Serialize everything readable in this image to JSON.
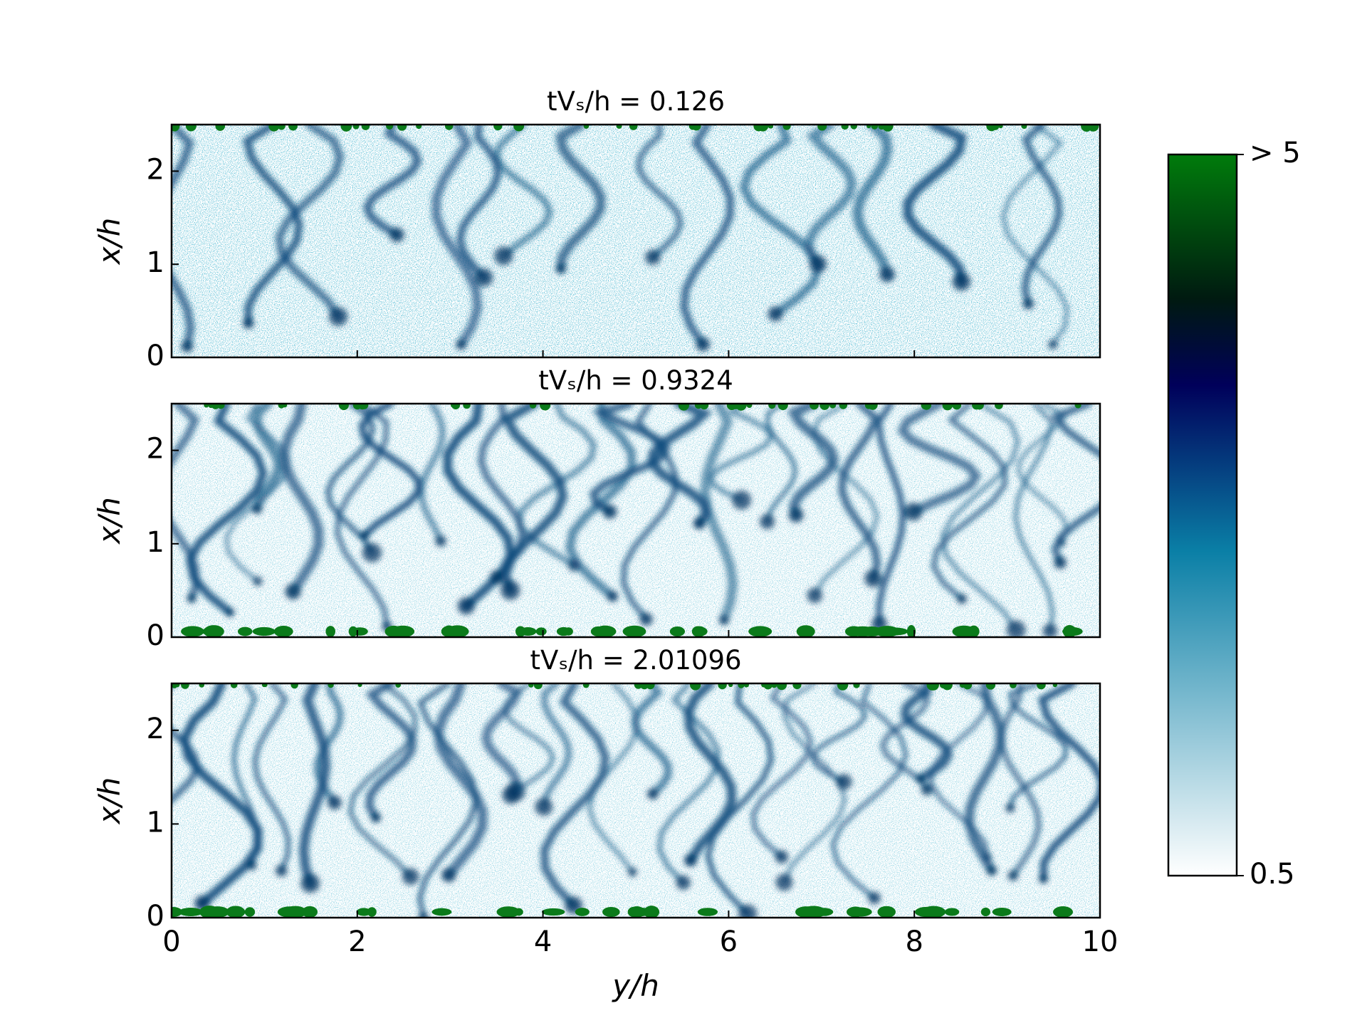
{
  "chart_data": [
    {
      "type": "image",
      "title": "tVₛ/h = 0.126",
      "ylabel": "x/h",
      "xlim": [
        0,
        10
      ],
      "ylim": [
        0,
        2.5
      ],
      "xticks": [
        0,
        2,
        4,
        6,
        8,
        10
      ],
      "yticks": [
        0,
        1,
        2
      ],
      "xtick_labels": false
    },
    {
      "type": "image",
      "title": "tVₛ/h = 0.9324",
      "ylabel": "x/h",
      "xlim": [
        0,
        10
      ],
      "ylim": [
        0,
        2.5
      ],
      "xticks": [
        0,
        2,
        4,
        6,
        8,
        10
      ],
      "yticks": [
        0,
        1,
        2
      ],
      "xtick_labels": false
    },
    {
      "type": "image",
      "title": "tVₛ/h = 2.01096",
      "ylabel": "x/h",
      "xlabel": "y/h",
      "xlim": [
        0,
        10
      ],
      "ylim": [
        0,
        2.5
      ],
      "xticks": [
        0,
        2,
        4,
        6,
        8,
        10
      ],
      "yticks": [
        0,
        1,
        2
      ],
      "xtick_labels": true
    }
  ],
  "colorbar": {
    "lim": [
      0.5,
      5
    ],
    "ticks": [
      0.5,
      {
        "value": 5,
        "label": "> 5"
      }
    ],
    "colormap": [
      {
        "pos": 0,
        "color": "#ffffff"
      },
      {
        "pos": 0.45,
        "color": "#0a7fa6"
      },
      {
        "pos": 0.68,
        "color": "#00005a"
      },
      {
        "pos": 0.8,
        "color": "#001a10"
      },
      {
        "pos": 1,
        "color": "#007b0c"
      }
    ]
  }
}
